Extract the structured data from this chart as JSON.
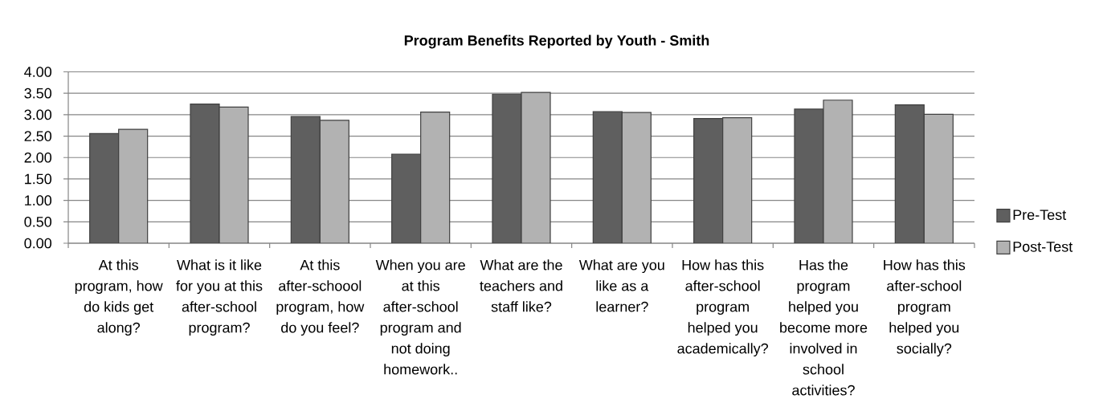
{
  "chart_data": {
    "type": "bar",
    "title": "Program Benefits Reported by Youth - Smith",
    "categories": [
      "At this program, how do kids get along?",
      "What is it like for you at this after-school program?",
      "At this after-schoool program, how do you feel?",
      "When you are at this after-school program and not doing homework..",
      "What are the teachers and staff like?",
      "What are you like as a learner?",
      "How has this after-school program helped you academically?",
      "Has the program helped you become more involved in school activities?",
      "How has this after-school program helped you socially?"
    ],
    "series": [
      {
        "name": "Pre-Test",
        "color": "#5f5f5f",
        "values": [
          2.56,
          3.25,
          2.96,
          2.08,
          3.48,
          3.07,
          2.91,
          3.13,
          3.23
        ]
      },
      {
        "name": "Post-Test",
        "color": "#b2b2b2",
        "values": [
          2.66,
          3.18,
          2.87,
          3.06,
          3.52,
          3.05,
          2.93,
          3.34,
          3.01
        ]
      }
    ],
    "ylim": [
      0,
      4
    ],
    "yticks": [
      {
        "value": 0,
        "label": "0.00"
      },
      {
        "value": 0.5,
        "label": "0.50"
      },
      {
        "value": 1,
        "label": "1.00"
      },
      {
        "value": 1.5,
        "label": "1.50"
      },
      {
        "value": 2,
        "label": "2.00"
      },
      {
        "value": 2.5,
        "label": "2.50"
      },
      {
        "value": 3,
        "label": "3.00"
      },
      {
        "value": 3.5,
        "label": "3.50"
      },
      {
        "value": 4,
        "label": "4.00"
      }
    ],
    "grid": "y",
    "legend": "right"
  }
}
